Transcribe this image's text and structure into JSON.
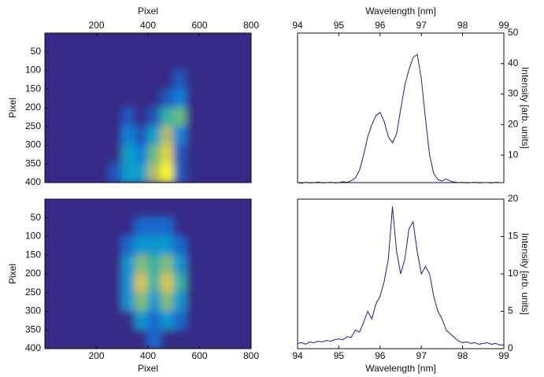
{
  "chart_data": [
    {
      "type": "heatmap",
      "xlabel": "Pixel",
      "ylabel": "Pixel",
      "xaxis_position": "top",
      "yaxis_position": "left",
      "ydir": "reverse",
      "xlim": [
        0,
        800
      ],
      "ylim": [
        0,
        400
      ],
      "xticks": [
        200,
        400,
        600,
        800
      ],
      "yticks": [
        50,
        100,
        150,
        200,
        250,
        300,
        350,
        400
      ],
      "colormap": "parula",
      "clim": [
        0,
        8
      ],
      "z": [
        [
          0,
          0,
          0,
          0,
          0,
          0,
          0,
          0,
          0,
          0,
          0,
          0,
          0,
          0,
          0,
          0
        ],
        [
          0,
          0,
          0,
          0,
          0,
          0,
          0,
          0,
          0,
          0,
          0,
          0,
          0,
          0,
          0,
          0
        ],
        [
          0,
          0,
          0,
          0,
          0,
          0,
          0,
          0,
          0,
          0,
          1,
          0,
          0,
          0,
          0,
          0
        ],
        [
          0,
          0,
          0,
          0,
          0,
          0,
          0,
          0,
          0,
          1,
          2,
          0,
          0,
          0,
          0,
          0
        ],
        [
          0,
          0,
          0,
          0,
          0,
          0,
          1,
          0,
          1,
          4,
          5,
          0,
          0,
          0,
          0,
          0
        ],
        [
          0,
          0,
          0,
          0,
          0,
          0,
          2,
          1,
          3,
          6,
          2,
          0,
          0,
          0,
          0,
          0
        ],
        [
          0,
          0,
          0,
          0,
          0,
          0,
          3,
          2,
          5,
          7,
          1,
          0,
          0,
          0,
          0,
          0
        ],
        [
          0,
          0,
          0,
          0,
          0,
          1,
          3,
          3,
          6,
          8,
          1,
          0,
          0,
          0,
          0,
          0
        ]
      ]
    },
    {
      "type": "heatmap",
      "xlabel": "Pixel",
      "ylabel": "Pixel",
      "xaxis_position": "bottom",
      "yaxis_position": "left",
      "ydir": "reverse",
      "xlim": [
        0,
        800
      ],
      "ylim": [
        0,
        400
      ],
      "xticks": [
        200,
        400,
        600,
        800
      ],
      "yticks": [
        50,
        100,
        150,
        200,
        250,
        300,
        350,
        400
      ],
      "colormap": "parula",
      "clim": [
        0,
        6
      ],
      "z": [
        [
          0,
          0,
          0,
          0,
          0,
          0,
          0,
          0,
          0,
          0,
          0,
          0,
          0,
          0,
          0,
          0
        ],
        [
          0,
          0,
          0,
          0,
          0,
          0,
          0,
          1,
          1,
          1,
          0,
          0,
          0,
          0,
          0,
          0
        ],
        [
          0,
          0,
          0,
          0,
          0,
          0,
          1,
          2,
          2,
          2,
          1,
          0,
          0,
          0,
          0,
          0
        ],
        [
          0,
          0,
          0,
          0,
          0,
          0,
          2,
          4,
          3,
          4,
          2,
          0,
          0,
          0,
          0,
          0
        ],
        [
          0,
          0,
          0,
          0,
          0,
          0,
          2,
          5,
          3,
          5,
          3,
          0,
          0,
          0,
          0,
          0
        ],
        [
          0,
          0,
          0,
          0,
          0,
          0,
          2,
          4,
          2,
          4,
          2,
          0,
          0,
          0,
          0,
          0
        ],
        [
          0,
          0,
          0,
          0,
          0,
          0,
          0,
          2,
          1,
          2,
          1,
          0,
          0,
          0,
          0,
          0
        ],
        [
          0,
          0,
          0,
          0,
          0,
          0,
          0,
          0,
          1,
          0,
          0,
          0,
          0,
          0,
          0,
          0
        ]
      ]
    },
    {
      "type": "line",
      "xlabel": "Wavelength [nm]",
      "ylabel": "Intensity [arb. units]",
      "xaxis_position": "top",
      "yaxis_position": "right",
      "xlim": [
        94,
        99
      ],
      "ylim": [
        1,
        50
      ],
      "xticks": [
        94,
        95,
        96,
        97,
        98,
        99
      ],
      "yticks": [
        10,
        20,
        30,
        40,
        50
      ],
      "x": [
        94,
        94.1,
        94.2,
        94.3,
        94.4,
        94.5,
        94.6,
        94.7,
        94.8,
        94.9,
        95,
        95.1,
        95.2,
        95.3,
        95.4,
        95.5,
        95.6,
        95.7,
        95.8,
        95.9,
        96,
        96.1,
        96.2,
        96.3,
        96.4,
        96.5,
        96.6,
        96.7,
        96.8,
        96.9,
        97,
        97.1,
        97.2,
        97.3,
        97.4,
        97.5,
        97.6,
        97.7,
        97.8,
        97.9,
        98,
        98.1,
        98.2,
        98.3,
        98.4,
        98.5,
        98.6,
        98.7,
        98.8,
        98.9,
        99
      ],
      "series": [
        {
          "color": "#1f1f8c",
          "values": [
            1,
            0.8,
            1.1,
            0.9,
            1,
            1.2,
            0.9,
            1,
            1.1,
            0.9,
            1,
            1.3,
            1.1,
            1.6,
            2.5,
            5,
            10,
            16,
            20,
            23,
            24,
            21,
            16,
            14,
            17,
            25,
            33,
            38,
            42,
            43,
            35,
            22,
            10,
            4,
            2,
            1.5,
            2.2,
            1.5,
            1.2,
            1,
            1.1,
            0.9,
            1,
            1.1,
            0.9,
            1,
            1,
            0.9,
            1.1,
            1,
            1
          ]
        }
      ]
    },
    {
      "type": "line",
      "xlabel": "Wavelength [nm]",
      "ylabel": "Intensity [arb. units]",
      "xaxis_position": "bottom",
      "yaxis_position": "right",
      "xlim": [
        94,
        99
      ],
      "ylim": [
        0,
        20
      ],
      "xticks": [
        94,
        95,
        96,
        97,
        98,
        99
      ],
      "yticks": [
        0,
        5,
        10,
        15,
        20
      ],
      "x": [
        94,
        94.1,
        94.2,
        94.3,
        94.4,
        94.5,
        94.6,
        94.7,
        94.8,
        94.9,
        95,
        95.1,
        95.2,
        95.3,
        95.4,
        95.5,
        95.6,
        95.7,
        95.8,
        95.9,
        96,
        96.1,
        96.2,
        96.3,
        96.4,
        96.5,
        96.6,
        96.7,
        96.8,
        96.9,
        97,
        97.1,
        97.2,
        97.3,
        97.4,
        97.5,
        97.6,
        97.7,
        97.8,
        97.9,
        98,
        98.1,
        98.2,
        98.3,
        98.4,
        98.5,
        98.6,
        98.7,
        98.8,
        98.9,
        99
      ],
      "series": [
        {
          "color": "#1f1f8c",
          "values": [
            0.7,
            0.8,
            0.6,
            0.9,
            0.8,
            1,
            0.9,
            1.1,
            1,
            1.2,
            1.3,
            1.2,
            1.6,
            1.5,
            2.5,
            2.2,
            3.5,
            5,
            4,
            6,
            7,
            9,
            12,
            19,
            13,
            10,
            12,
            16,
            17,
            13,
            10,
            11,
            10,
            7,
            5,
            4,
            2.5,
            2,
            1.5,
            1,
            0.8,
            0.9,
            0.7,
            0.8,
            0.6,
            0.7,
            0.8,
            0.6,
            0.7,
            0.5,
            0.5
          ]
        }
      ]
    }
  ]
}
